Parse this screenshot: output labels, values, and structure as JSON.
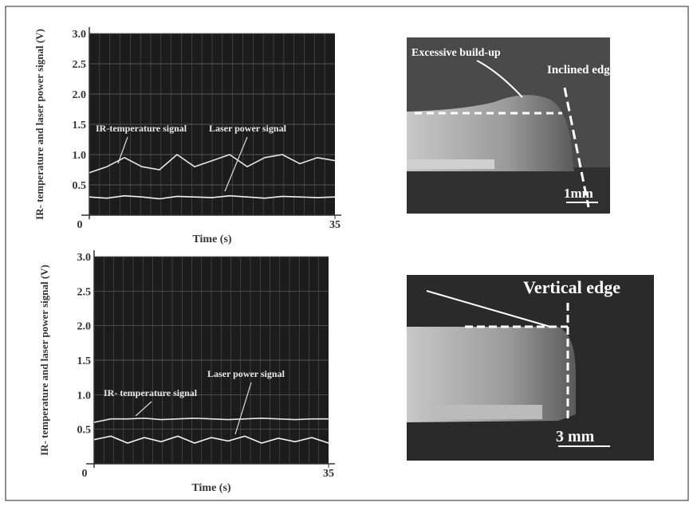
{
  "chart_data": [
    {
      "type": "line",
      "y_label": "IR- temperature and laser power signal (V)",
      "x_label": "Time (s)",
      "x": [
        0,
        2.5,
        5,
        7.5,
        10,
        12.5,
        15,
        17.5,
        20,
        22.5,
        25,
        27.5,
        30,
        32.5,
        35
      ],
      "series": [
        {
          "name": "IR-temperature signal",
          "color": "#e6e6e6",
          "values": [
            0.7,
            0.8,
            0.95,
            0.8,
            0.75,
            1.0,
            0.8,
            0.9,
            1.0,
            0.8,
            0.95,
            1.0,
            0.85,
            0.95,
            0.9
          ]
        },
        {
          "name": "Laser power signal",
          "color": "#f2f2f2",
          "values": [
            0.3,
            0.28,
            0.32,
            0.3,
            0.27,
            0.31,
            0.3,
            0.29,
            0.32,
            0.3,
            0.28,
            0.31,
            0.3,
            0.29,
            0.3
          ]
        }
      ],
      "xlim": [
        0,
        35
      ],
      "xticks": [
        0,
        35
      ],
      "ylim": [
        0,
        3
      ],
      "yticks": [
        {
          "value": 0.5,
          "label": "0.5"
        },
        {
          "value": 1,
          "label": "1.0"
        },
        {
          "value": 1.5,
          "label": "1.5"
        },
        {
          "value": 2,
          "label": "2.0"
        },
        {
          "value": 2.5,
          "label": "2.5"
        },
        {
          "value": 3,
          "label": "3.0"
        }
      ],
      "grid": true
    },
    {
      "type": "line",
      "y_label": "IR- temperature and laser power signal (V)",
      "x_label": "Time (s)",
      "x": [
        0,
        2.5,
        5,
        7.5,
        10,
        12.5,
        15,
        17.5,
        20,
        22.5,
        25,
        27.5,
        30,
        32.5,
        35
      ],
      "series": [
        {
          "name": "IR- temperature signal",
          "color": "#e6e6e6",
          "values": [
            0.6,
            0.65,
            0.65,
            0.66,
            0.64,
            0.65,
            0.66,
            0.65,
            0.64,
            0.65,
            0.66,
            0.65,
            0.64,
            0.65,
            0.65
          ]
        },
        {
          "name": "Laser power signal",
          "color": "#f2f2f2",
          "values": [
            0.35,
            0.4,
            0.3,
            0.38,
            0.32,
            0.4,
            0.3,
            0.38,
            0.33,
            0.4,
            0.3,
            0.37,
            0.32,
            0.38,
            0.3
          ]
        }
      ],
      "xlim": [
        0,
        35
      ],
      "xticks": [
        0,
        35
      ],
      "ylim": [
        0,
        3
      ],
      "yticks": [
        {
          "value": 0.5,
          "label": "0.5"
        },
        {
          "value": 1,
          "label": "1.0"
        },
        {
          "value": 1.5,
          "label": "1.5"
        },
        {
          "value": 2,
          "label": "2.0"
        },
        {
          "value": 2.5,
          "label": "2.5"
        },
        {
          "value": 3,
          "label": "3.0"
        }
      ],
      "grid": true
    }
  ],
  "images": [
    {
      "labels": [
        "Excessive build-up",
        "Inclined edge",
        "1mm"
      ]
    },
    {
      "labels": [
        "Vertical edge",
        "3 mm"
      ]
    }
  ]
}
